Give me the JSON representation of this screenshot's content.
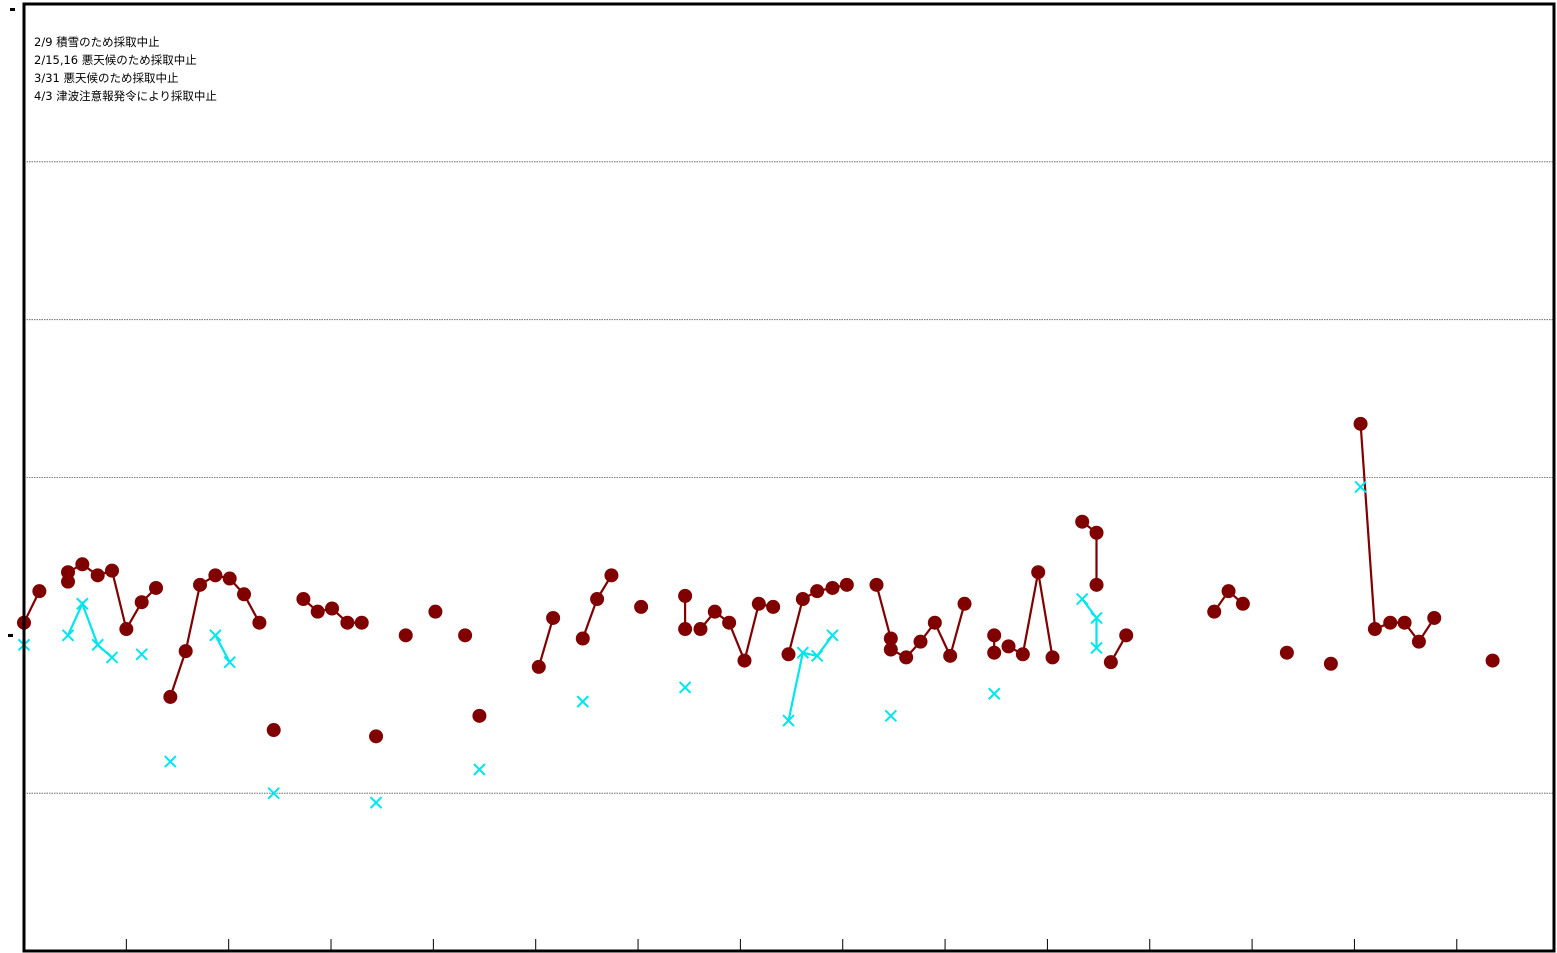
{
  "chart_data": {
    "type": "line",
    "annotations": [
      "2/9 積雪のため採取中止",
      "2/15,16  悪天候のため採取中止",
      "3/31 悪天候のため採取中止",
      "4/3  津波注意報発令により採取中止"
    ],
    "xlim": [
      0,
      149.5
    ],
    "ylim": [
      -200,
      400
    ],
    "grid": "horizontal",
    "x_ticks": [
      10,
      20,
      30,
      40,
      50,
      60,
      70,
      80,
      90,
      100,
      110,
      120,
      130,
      140
    ],
    "y_gridlines": [
      -100,
      100,
      200,
      300
    ],
    "series": [
      {
        "color": "#800000",
        "marker": "circle",
        "segments": [
          [
            [
              0,
              8
            ],
            [
              1.5,
              28
            ]
          ],
          [
            [
              4.3,
              34
            ],
            [
              4.3,
              40
            ],
            [
              5.7,
              45
            ],
            [
              7.2,
              38
            ],
            [
              8.6,
              41
            ],
            [
              10,
              4
            ],
            [
              11.5,
              21
            ],
            [
              12.9,
              30
            ]
          ],
          [
            [
              14.3,
              -39
            ],
            [
              15.8,
              -10
            ],
            [
              17.2,
              32
            ],
            [
              18.7,
              38
            ],
            [
              20.1,
              36
            ],
            [
              21.5,
              26
            ],
            [
              23,
              8
            ]
          ],
          [
            [
              24.4,
              -60
            ]
          ],
          [
            [
              27.3,
              23
            ],
            [
              28.7,
              15
            ],
            [
              30.1,
              17
            ],
            [
              31.6,
              8
            ],
            [
              33,
              8
            ]
          ],
          [
            [
              34.4,
              -64
            ]
          ],
          [
            [
              37.3,
              0
            ]
          ],
          [
            [
              40.2,
              15
            ]
          ],
          [
            [
              43.1,
              0
            ]
          ],
          [
            [
              44.5,
              -51
            ]
          ],
          [
            [
              50.3,
              -20
            ],
            [
              51.7,
              11
            ]
          ],
          [
            [
              54.6,
              -2
            ],
            [
              56,
              23
            ],
            [
              57.4,
              38
            ]
          ],
          [
            [
              60.3,
              18
            ]
          ],
          [
            [
              64.6,
              25
            ],
            [
              64.6,
              4
            ]
          ],
          [
            [
              66.1,
              4
            ],
            [
              67.5,
              15
            ],
            [
              68.9,
              8
            ],
            [
              70.4,
              -16
            ],
            [
              71.8,
              20
            ],
            [
              73.2,
              18
            ]
          ],
          [
            [
              74.7,
              -12
            ],
            [
              76.1,
              23
            ],
            [
              77.5,
              28
            ],
            [
              79,
              30
            ],
            [
              80.4,
              32
            ]
          ],
          [
            [
              83.3,
              32
            ],
            [
              84.7,
              -2
            ]
          ],
          [
            [
              84.7,
              -9
            ],
            [
              86.2,
              -14
            ],
            [
              87.6,
              -4
            ],
            [
              89,
              8
            ],
            [
              90.5,
              -13
            ],
            [
              91.9,
              20
            ]
          ],
          [
            [
              94.8,
              0
            ],
            [
              94.8,
              -11
            ]
          ],
          [
            [
              96.2,
              -7
            ],
            [
              97.6,
              -12
            ],
            [
              99.1,
              40
            ],
            [
              100.5,
              -14
            ]
          ],
          [
            [
              103.4,
              72
            ],
            [
              104.8,
              65
            ],
            [
              104.8,
              32
            ]
          ],
          [
            [
              106.2,
              -17
            ],
            [
              107.7,
              0
            ]
          ],
          [
            [
              116.3,
              15
            ],
            [
              117.7,
              28
            ],
            [
              119.1,
              20
            ]
          ],
          [
            [
              123.4,
              -11
            ]
          ],
          [
            [
              127.7,
              -18
            ]
          ],
          [
            [
              130.6,
              134
            ],
            [
              132,
              4
            ],
            [
              133.5,
              8
            ],
            [
              134.9,
              8
            ],
            [
              136.3,
              -4
            ],
            [
              137.8,
              11
            ]
          ],
          [
            [
              143.5,
              -16
            ]
          ]
        ]
      },
      {
        "color": "#00e5ee",
        "marker": "x",
        "segments": [
          [
            [
              0,
              -6
            ]
          ],
          [
            [
              4.3,
              0
            ],
            [
              5.7,
              20
            ],
            [
              7.2,
              -6
            ],
            [
              8.6,
              -14
            ]
          ],
          [
            [
              11.5,
              -12
            ]
          ],
          [
            [
              14.3,
              -80
            ]
          ],
          [
            [
              18.7,
              0
            ],
            [
              20.1,
              -17
            ]
          ],
          [
            [
              24.4,
              -100
            ]
          ],
          [
            [
              34.4,
              -106
            ]
          ],
          [
            [
              44.5,
              -85
            ]
          ],
          [
            [
              54.6,
              -42
            ]
          ],
          [
            [
              64.6,
              -33
            ]
          ],
          [
            [
              74.7,
              -54
            ],
            [
              76.1,
              -11
            ],
            [
              77.5,
              -13
            ],
            [
              79,
              0
            ]
          ],
          [
            [
              84.7,
              -51
            ]
          ],
          [
            [
              94.8,
              -37
            ]
          ],
          [
            [
              103.4,
              23
            ],
            [
              104.8,
              11
            ],
            [
              104.8,
              -8
            ]
          ],
          [
            [
              130.6,
              94
            ]
          ]
        ]
      }
    ]
  }
}
